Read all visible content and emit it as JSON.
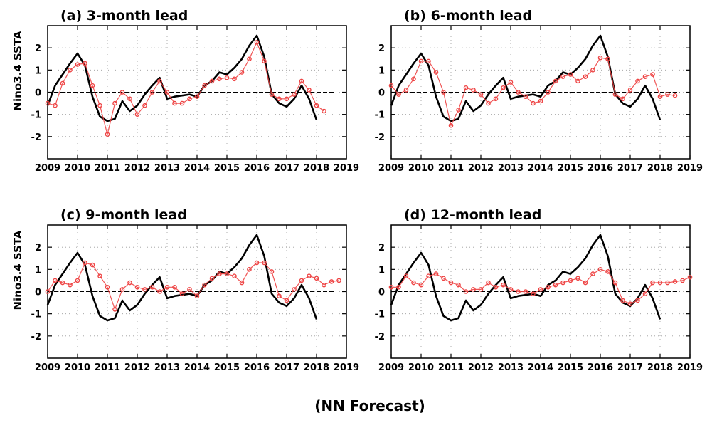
{
  "figure_label": "(NN Forecast)",
  "chart_data": [
    {
      "type": "line",
      "title": "(a) 3-month lead",
      "ylabel": "Nino3.4 SSTA",
      "xlim": [
        2009,
        2019
      ],
      "ylim": [
        -3,
        3
      ],
      "xticks": [
        2009,
        2010,
        2011,
        2012,
        2013,
        2014,
        2015,
        2016,
        2017,
        2018,
        2019
      ],
      "yticks": [
        -2,
        -1,
        0,
        1,
        2
      ],
      "grid": true,
      "series": [
        {
          "style": "black solid line",
          "color": "#000000",
          "x": [
            2009.0,
            2009.25,
            2009.5,
            2009.75,
            2010.0,
            2010.25,
            2010.5,
            2010.75,
            2011.0,
            2011.25,
            2011.5,
            2011.75,
            2012.0,
            2012.25,
            2012.5,
            2012.75,
            2013.0,
            2013.25,
            2013.5,
            2013.75,
            2014.0,
            2014.25,
            2014.5,
            2014.75,
            2015.0,
            2015.25,
            2015.5,
            2015.75,
            2016.0,
            2016.25,
            2016.5,
            2016.75,
            2017.0,
            2017.25,
            2017.5,
            2017.75,
            2018.0
          ],
          "y": [
            -0.6,
            0.3,
            0.8,
            1.3,
            1.75,
            1.2,
            -0.2,
            -1.1,
            -1.3,
            -1.2,
            -0.4,
            -0.85,
            -0.6,
            -0.1,
            0.3,
            0.65,
            -0.3,
            -0.2,
            -0.15,
            -0.1,
            -0.2,
            0.3,
            0.5,
            0.9,
            0.8,
            1.1,
            1.5,
            2.1,
            2.55,
            1.6,
            -0.1,
            -0.5,
            -0.65,
            -0.3,
            0.3,
            -0.3,
            -1.25
          ]
        },
        {
          "style": "red circles",
          "color": "#ee4444",
          "x": [
            2009.0,
            2009.25,
            2009.5,
            2009.75,
            2010.0,
            2010.25,
            2010.5,
            2010.75,
            2011.0,
            2011.25,
            2011.5,
            2011.75,
            2012.0,
            2012.25,
            2012.5,
            2012.75,
            2013.0,
            2013.25,
            2013.5,
            2013.75,
            2014.0,
            2014.25,
            2014.5,
            2014.75,
            2015.0,
            2015.25,
            2015.5,
            2015.75,
            2016.0,
            2016.25,
            2016.5,
            2016.75,
            2017.0,
            2017.25,
            2017.5,
            2017.75,
            2018.0,
            2018.25
          ],
          "y": [
            -0.5,
            -0.6,
            0.4,
            1.0,
            1.25,
            1.3,
            0.3,
            -0.6,
            -1.9,
            -0.5,
            0.0,
            -0.3,
            -1.0,
            -0.6,
            0.0,
            0.5,
            0.0,
            -0.5,
            -0.5,
            -0.3,
            -0.2,
            0.3,
            0.5,
            0.6,
            0.65,
            0.6,
            0.9,
            1.5,
            2.25,
            1.4,
            -0.1,
            -0.3,
            -0.3,
            -0.1,
            0.5,
            0.1,
            -0.6,
            -0.85
          ]
        }
      ]
    },
    {
      "type": "line",
      "title": "(b) 6-month lead",
      "ylabel": "",
      "xlim": [
        2009,
        2019
      ],
      "ylim": [
        -3,
        3
      ],
      "xticks": [
        2009,
        2010,
        2011,
        2012,
        2013,
        2014,
        2015,
        2016,
        2017,
        2018,
        2019
      ],
      "yticks": [
        -2,
        -1,
        0,
        1,
        2
      ],
      "grid": true,
      "series": [
        {
          "style": "black solid line",
          "color": "#000000",
          "x": [
            2009.0,
            2009.25,
            2009.5,
            2009.75,
            2010.0,
            2010.25,
            2010.5,
            2010.75,
            2011.0,
            2011.25,
            2011.5,
            2011.75,
            2012.0,
            2012.25,
            2012.5,
            2012.75,
            2013.0,
            2013.25,
            2013.5,
            2013.75,
            2014.0,
            2014.25,
            2014.5,
            2014.75,
            2015.0,
            2015.25,
            2015.5,
            2015.75,
            2016.0,
            2016.25,
            2016.5,
            2016.75,
            2017.0,
            2017.25,
            2017.5,
            2017.75,
            2018.0
          ],
          "y": [
            -0.6,
            0.3,
            0.8,
            1.3,
            1.75,
            1.2,
            -0.2,
            -1.1,
            -1.3,
            -1.2,
            -0.4,
            -0.85,
            -0.6,
            -0.1,
            0.3,
            0.65,
            -0.3,
            -0.2,
            -0.15,
            -0.1,
            -0.2,
            0.3,
            0.5,
            0.9,
            0.8,
            1.1,
            1.5,
            2.1,
            2.55,
            1.6,
            -0.1,
            -0.5,
            -0.65,
            -0.3,
            0.3,
            -0.3,
            -1.25
          ]
        },
        {
          "style": "red circles",
          "color": "#ee4444",
          "x": [
            2009.0,
            2009.25,
            2009.5,
            2009.75,
            2010.0,
            2010.25,
            2010.5,
            2010.75,
            2011.0,
            2011.25,
            2011.5,
            2011.75,
            2012.0,
            2012.25,
            2012.5,
            2012.75,
            2013.0,
            2013.25,
            2013.5,
            2013.75,
            2014.0,
            2014.25,
            2014.5,
            2014.75,
            2015.0,
            2015.25,
            2015.5,
            2015.75,
            2016.0,
            2016.25,
            2016.5,
            2016.75,
            2017.0,
            2017.25,
            2017.5,
            2017.75,
            2018.0,
            2018.25,
            2018.5
          ],
          "y": [
            0.3,
            -0.1,
            0.1,
            0.6,
            1.4,
            1.4,
            0.9,
            0.0,
            -1.5,
            -0.8,
            0.2,
            0.1,
            -0.1,
            -0.5,
            -0.3,
            0.2,
            0.45,
            0.0,
            -0.2,
            -0.5,
            -0.4,
            0.0,
            0.5,
            0.7,
            0.8,
            0.5,
            0.7,
            1.0,
            1.55,
            1.5,
            -0.1,
            -0.3,
            0.1,
            0.5,
            0.7,
            0.8,
            -0.2,
            -0.1,
            -0.15
          ]
        }
      ]
    },
    {
      "type": "line",
      "title": "(c) 9-month lead",
      "ylabel": "Nino3.4 SSTA",
      "xlim": [
        2009,
        2019
      ],
      "ylim": [
        -3,
        3
      ],
      "xticks": [
        2009,
        2010,
        2011,
        2012,
        2013,
        2014,
        2015,
        2016,
        2017,
        2018,
        2019
      ],
      "yticks": [
        -2,
        -1,
        0,
        1,
        2
      ],
      "grid": true,
      "series": [
        {
          "style": "black solid line",
          "color": "#000000",
          "x": [
            2009.0,
            2009.25,
            2009.5,
            2009.75,
            2010.0,
            2010.25,
            2010.5,
            2010.75,
            2011.0,
            2011.25,
            2011.5,
            2011.75,
            2012.0,
            2012.25,
            2012.5,
            2012.75,
            2013.0,
            2013.25,
            2013.5,
            2013.75,
            2014.0,
            2014.25,
            2014.5,
            2014.75,
            2015.0,
            2015.25,
            2015.5,
            2015.75,
            2016.0,
            2016.25,
            2016.5,
            2016.75,
            2017.0,
            2017.25,
            2017.5,
            2017.75,
            2018.0
          ],
          "y": [
            -0.6,
            0.3,
            0.8,
            1.3,
            1.75,
            1.2,
            -0.2,
            -1.1,
            -1.3,
            -1.2,
            -0.4,
            -0.85,
            -0.6,
            -0.1,
            0.3,
            0.65,
            -0.3,
            -0.2,
            -0.15,
            -0.1,
            -0.2,
            0.3,
            0.5,
            0.9,
            0.8,
            1.1,
            1.5,
            2.1,
            2.55,
            1.6,
            -0.1,
            -0.5,
            -0.65,
            -0.3,
            0.3,
            -0.3,
            -1.25
          ]
        },
        {
          "style": "red circles",
          "color": "#ee4444",
          "x": [
            2009.0,
            2009.25,
            2009.5,
            2009.75,
            2010.0,
            2010.25,
            2010.5,
            2010.75,
            2011.0,
            2011.25,
            2011.5,
            2011.75,
            2012.0,
            2012.25,
            2012.5,
            2012.75,
            2013.0,
            2013.25,
            2013.5,
            2013.75,
            2014.0,
            2014.25,
            2014.5,
            2014.75,
            2015.0,
            2015.25,
            2015.5,
            2015.75,
            2016.0,
            2016.25,
            2016.5,
            2016.75,
            2017.0,
            2017.25,
            2017.5,
            2017.75,
            2018.0,
            2018.25,
            2018.5,
            2018.75
          ],
          "y": [
            0.0,
            0.5,
            0.4,
            0.3,
            0.5,
            1.3,
            1.2,
            0.7,
            0.2,
            -0.8,
            0.1,
            0.4,
            0.2,
            0.1,
            0.2,
            0.0,
            0.2,
            0.2,
            -0.1,
            0.1,
            -0.2,
            0.3,
            0.6,
            0.8,
            0.8,
            0.7,
            0.4,
            1.0,
            1.3,
            1.3,
            0.9,
            -0.2,
            -0.4,
            0.1,
            0.5,
            0.7,
            0.6,
            0.3,
            0.45,
            0.5
          ]
        }
      ]
    },
    {
      "type": "line",
      "title": "(d) 12-month lead",
      "ylabel": "",
      "xlim": [
        2009,
        2019
      ],
      "ylim": [
        -3,
        3
      ],
      "xticks": [
        2009,
        2010,
        2011,
        2012,
        2013,
        2014,
        2015,
        2016,
        2017,
        2018,
        2019
      ],
      "yticks": [
        -2,
        -1,
        0,
        1,
        2
      ],
      "grid": true,
      "series": [
        {
          "style": "black solid line",
          "color": "#000000",
          "x": [
            2009.0,
            2009.25,
            2009.5,
            2009.75,
            2010.0,
            2010.25,
            2010.5,
            2010.75,
            2011.0,
            2011.25,
            2011.5,
            2011.75,
            2012.0,
            2012.25,
            2012.5,
            2012.75,
            2013.0,
            2013.25,
            2013.5,
            2013.75,
            2014.0,
            2014.25,
            2014.5,
            2014.75,
            2015.0,
            2015.25,
            2015.5,
            2015.75,
            2016.0,
            2016.25,
            2016.5,
            2016.75,
            2017.0,
            2017.25,
            2017.5,
            2017.75,
            2018.0
          ],
          "y": [
            -0.6,
            0.3,
            0.8,
            1.3,
            1.75,
            1.2,
            -0.2,
            -1.1,
            -1.3,
            -1.2,
            -0.4,
            -0.85,
            -0.6,
            -0.1,
            0.3,
            0.65,
            -0.3,
            -0.2,
            -0.15,
            -0.1,
            -0.2,
            0.3,
            0.5,
            0.9,
            0.8,
            1.1,
            1.5,
            2.1,
            2.55,
            1.6,
            -0.1,
            -0.5,
            -0.65,
            -0.3,
            0.3,
            -0.3,
            -1.25
          ]
        },
        {
          "style": "red circles",
          "color": "#ee4444",
          "x": [
            2009.0,
            2009.25,
            2009.5,
            2009.75,
            2010.0,
            2010.25,
            2010.5,
            2010.75,
            2011.0,
            2011.25,
            2011.5,
            2011.75,
            2012.0,
            2012.25,
            2012.5,
            2012.75,
            2013.0,
            2013.25,
            2013.5,
            2013.75,
            2014.0,
            2014.25,
            2014.5,
            2014.75,
            2015.0,
            2015.25,
            2015.5,
            2015.75,
            2016.0,
            2016.25,
            2016.5,
            2016.75,
            2017.0,
            2017.25,
            2017.5,
            2017.75,
            2018.0,
            2018.25,
            2018.5,
            2018.75,
            2019.0
          ],
          "y": [
            0.2,
            0.2,
            0.7,
            0.4,
            0.3,
            0.7,
            0.8,
            0.6,
            0.4,
            0.3,
            0.0,
            0.1,
            0.1,
            0.4,
            0.2,
            0.3,
            0.1,
            0.0,
            0.0,
            -0.1,
            0.1,
            0.2,
            0.3,
            0.4,
            0.5,
            0.6,
            0.4,
            0.8,
            1.0,
            0.9,
            0.4,
            -0.4,
            -0.55,
            -0.4,
            -0.1,
            0.4,
            0.4,
            0.4,
            0.45,
            0.5,
            0.65
          ]
        }
      ]
    }
  ]
}
